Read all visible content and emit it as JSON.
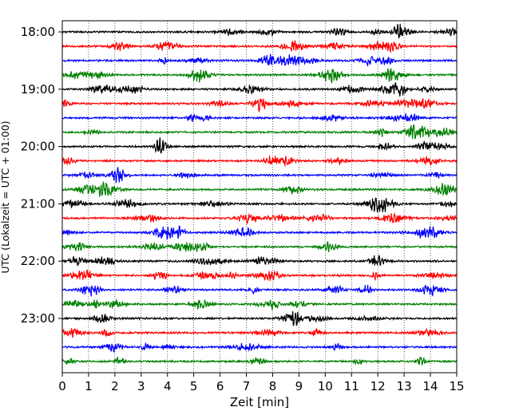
{
  "chart_data": {
    "type": "line",
    "subtype": "helicorder",
    "xlabel": "Zeit  [min]",
    "ylabel": "UTC (Lokalzeit = UTC + 01:00)",
    "xlim": [
      0,
      15
    ],
    "x_ticks": [
      "0",
      "1",
      "2",
      "3",
      "4",
      "5",
      "6",
      "7",
      "8",
      "9",
      "10",
      "11",
      "12",
      "13",
      "14",
      "15"
    ],
    "y_tick_labels": [
      "18:00",
      "19:00",
      "20:00",
      "21:00",
      "22:00",
      "23:00"
    ],
    "grid": "vertical dotted at every minute",
    "trace_interval_minutes": 15,
    "trace_colors": [
      "#000000",
      "#ff0000",
      "#0000ff",
      "#008000"
    ],
    "series": [
      {
        "start": "18:00",
        "color": "#000000"
      },
      {
        "start": "18:15",
        "color": "#ff0000"
      },
      {
        "start": "18:30",
        "color": "#0000ff"
      },
      {
        "start": "18:45",
        "color": "#008000"
      },
      {
        "start": "19:00",
        "color": "#000000"
      },
      {
        "start": "19:15",
        "color": "#ff0000"
      },
      {
        "start": "19:30",
        "color": "#0000ff"
      },
      {
        "start": "19:45",
        "color": "#008000"
      },
      {
        "start": "20:00",
        "color": "#000000"
      },
      {
        "start": "20:15",
        "color": "#ff0000"
      },
      {
        "start": "20:30",
        "color": "#0000ff"
      },
      {
        "start": "20:45",
        "color": "#008000"
      },
      {
        "start": "21:00",
        "color": "#000000"
      },
      {
        "start": "21:15",
        "color": "#ff0000"
      },
      {
        "start": "21:30",
        "color": "#0000ff"
      },
      {
        "start": "21:45",
        "color": "#008000"
      },
      {
        "start": "22:00",
        "color": "#000000"
      },
      {
        "start": "22:15",
        "color": "#ff0000"
      },
      {
        "start": "22:30",
        "color": "#0000ff"
      },
      {
        "start": "22:45",
        "color": "#008000"
      },
      {
        "start": "23:00",
        "color": "#000000"
      },
      {
        "start": "23:15",
        "color": "#ff0000"
      },
      {
        "start": "23:30",
        "color": "#0000ff"
      },
      {
        "start": "23:45",
        "color": "#008000"
      }
    ]
  }
}
